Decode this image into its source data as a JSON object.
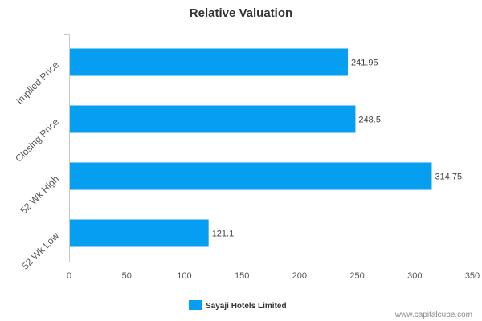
{
  "chart_data": {
    "type": "bar",
    "orientation": "horizontal",
    "title": "Relative Valuation",
    "categories": [
      "Implied Price",
      "Closing Price",
      "52 Wk High",
      "52 Wk Low"
    ],
    "series": [
      {
        "name": "Sayaji Hotels Limited",
        "values": [
          241.95,
          248.5,
          314.75,
          121.1
        ],
        "labels": [
          "241.95",
          "248.5",
          "314.75",
          "121.1"
        ],
        "color": "#069ef0"
      }
    ],
    "xlim": [
      0,
      350
    ],
    "xticks": [
      0,
      50,
      100,
      150,
      200,
      250,
      300,
      350
    ],
    "grid": false,
    "legend_position": "bottom"
  },
  "watermark": "www.capitalcube.com",
  "colors": {
    "bar": "#069ef0",
    "axis": "#c8c8c8"
  }
}
